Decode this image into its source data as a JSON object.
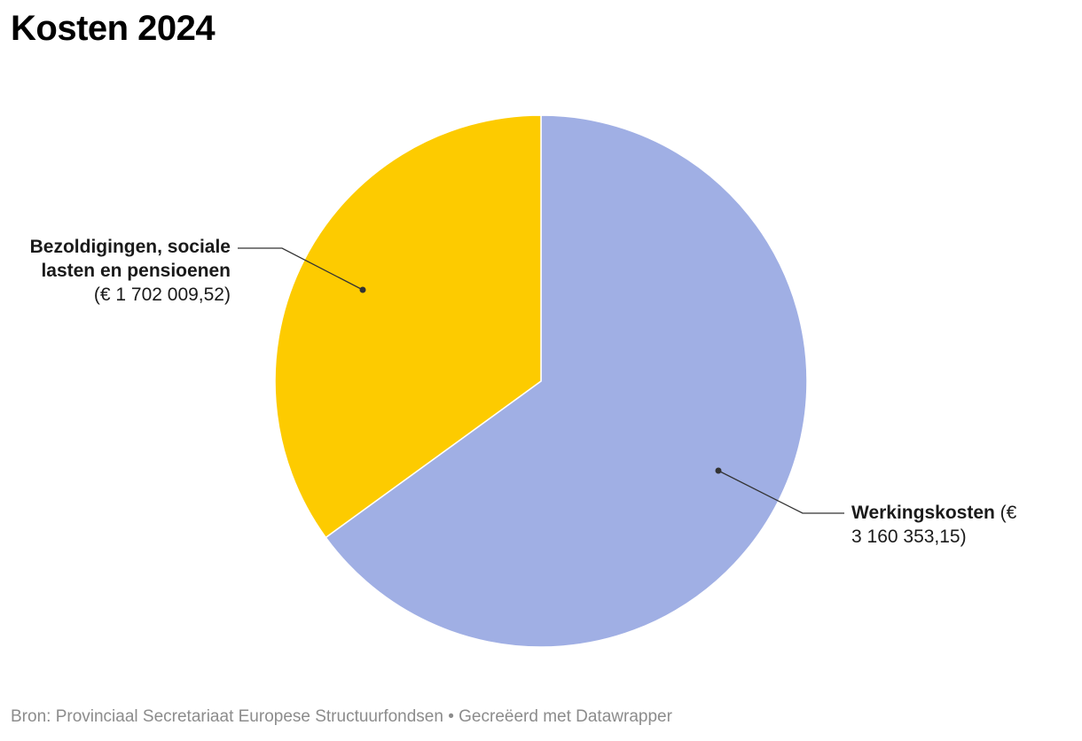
{
  "title": "Kosten 2024",
  "source": "Bron: Provinciaal Secretariaat Europese Structuurfondsen • Gecreëerd met Datawrapper",
  "chart_data": {
    "type": "pie",
    "title": "Kosten 2024",
    "currency": "€",
    "slices": [
      {
        "name": "Werkingskosten",
        "value": 3160353.15,
        "value_label": "3 160 353,15",
        "color": "#a0afe4"
      },
      {
        "name": "Bezoldigingen, sociale lasten en pensioenen",
        "value": 1702009.52,
        "value_label": "1 702 009,52",
        "color": "#fdcb00"
      }
    ]
  }
}
